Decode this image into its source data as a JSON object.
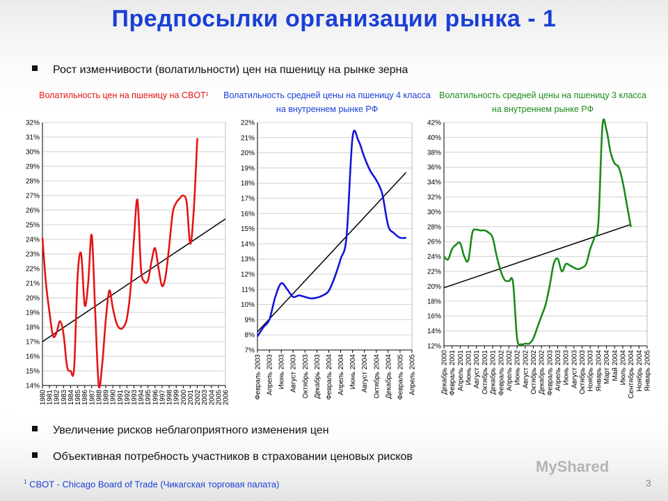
{
  "title": "Предпосылки организации рынка - 1",
  "bullets": {
    "b1": "Рост изменчивости (волатильности) цен на пшеницу на рынке зерна",
    "b2": "Увеличение рисков неблагоприятного изменения цен",
    "b3": "Объективная потребность участников в страховании ценовых рисков"
  },
  "footnote": {
    "sup": "1",
    "text": "CBOT - Chicago Board of Trade (Чикагская торговая палата)"
  },
  "page_number": "3",
  "watermark": "MyShared",
  "colors": {
    "title": "#1a3fd6",
    "red": "#e41414",
    "blue": "#1414d8",
    "green": "#1a8a1a",
    "trend": "#000000"
  },
  "chart_data": [
    {
      "type": "line",
      "title": "Волатильность цен на пшеницу на CBOT¹",
      "title_color": "#e41414",
      "color": "#e41414",
      "ylim": [
        14,
        32
      ],
      "y_ticks": [
        "14%",
        "15%",
        "16%",
        "17%",
        "18%",
        "19%",
        "20%",
        "21%",
        "22%",
        "23%",
        "24%",
        "25%",
        "26%",
        "27%",
        "28%",
        "29%",
        "30%",
        "31%",
        "32%"
      ],
      "x_labels": [
        "1980",
        "1981",
        "1982",
        "1983",
        "1984",
        "1985",
        "1986",
        "1987",
        "1988",
        "1989",
        "1990",
        "1991",
        "1992",
        "1993",
        "1994",
        "1995",
        "1996",
        "1997",
        "1998",
        "1999",
        "2000",
        "2001",
        "2002",
        "2003",
        "2004",
        "2005",
        "2006"
      ],
      "xlim": [
        0,
        26
      ],
      "x": [
        0,
        0.5,
        1,
        1.5,
        2,
        2.5,
        3,
        3.5,
        4,
        4.5,
        5,
        5.5,
        6,
        6.5,
        7,
        7.5,
        8,
        8.5,
        9,
        9.5,
        10,
        10.5,
        11,
        11.5,
        12,
        12.5,
        13,
        13.5,
        14,
        14.5,
        15,
        15.5,
        16,
        16.5,
        17,
        17.5,
        18,
        18.5,
        19,
        19.5,
        20,
        20.5,
        21,
        21.5,
        22,
        22.5,
        23,
        23.5,
        24,
        24.5,
        25,
        25.5,
        26
      ],
      "y": [
        24.1,
        21.0,
        19.0,
        17.4,
        17.6,
        18.4,
        17.5,
        15.3,
        15.0,
        15.2,
        21.5,
        23.0,
        19.5,
        21.0,
        24.3,
        19.0,
        14.0,
        15.5,
        18.5,
        20.5,
        19.3,
        18.3,
        17.9,
        18.0,
        18.6,
        20.5,
        24.0,
        26.7,
        22.0,
        21.1,
        21.2,
        22.5,
        23.4,
        22.0,
        20.8,
        21.5,
        23.5,
        25.8,
        26.5,
        26.8,
        27.0,
        26.5,
        23.7,
        26.0,
        30.9,
        null,
        null,
        null,
        null,
        null,
        null,
        null,
        null
      ],
      "trend": {
        "x": [
          0,
          26
        ],
        "y": [
          17.0,
          25.4
        ]
      }
    },
    {
      "type": "line",
      "title": "Волатильность средней цены на пшеницу 4 класса на внутреннем рынке РФ",
      "title_color": "#1a3fd6",
      "color": "#1414d8",
      "ylim": [
        7,
        22
      ],
      "y_ticks": [
        "7%",
        "8%",
        "9%",
        "10%",
        "11%",
        "12%",
        "13%",
        "14%",
        "15%",
        "16%",
        "17%",
        "18%",
        "19%",
        "20%",
        "21%",
        "22%"
      ],
      "x_labels": [
        "Февраль 2003",
        "Апрель 2003",
        "Июнь 2003",
        "Август 2003",
        "Октябрь 2003",
        "Декабрь 2003",
        "Февраль 2004",
        "Апрель 2004",
        "Июнь 2004",
        "Август 2004",
        "Октябрь 2004",
        "Декабрь 2004",
        "Февраль 2005",
        "Апрель 2005"
      ],
      "xlim": [
        0,
        26
      ],
      "x": [
        0,
        1,
        2,
        3,
        4,
        5,
        6,
        7,
        8,
        9,
        10,
        11,
        12,
        13,
        14,
        15,
        16,
        17,
        18,
        19,
        20,
        21,
        22,
        23,
        24,
        25,
        26
      ],
      "y": [
        7.9,
        8.5,
        9.0,
        10.5,
        11.4,
        11.0,
        10.5,
        10.6,
        10.5,
        10.4,
        10.45,
        10.6,
        10.9,
        11.8,
        13.0,
        14.5,
        21.0,
        20.8,
        19.7,
        18.8,
        18.2,
        17.3,
        15.2,
        14.7,
        14.4,
        14.4,
        null
      ],
      "trend": {
        "x": [
          0,
          25
        ],
        "y": [
          8.2,
          18.7
        ]
      }
    },
    {
      "type": "line",
      "title": "Волатильность средней цены на пшеницу 3 класса на внутреннем рынке РФ",
      "title_color": "#1a8a1a",
      "color": "#1a8a1a",
      "ylim": [
        12,
        42
      ],
      "y_ticks": [
        "12%",
        "14%",
        "16%",
        "18%",
        "20%",
        "22%",
        "24%",
        "26%",
        "28%",
        "30%",
        "32%",
        "34%",
        "36%",
        "38%",
        "40%",
        "42%"
      ],
      "x_labels": [
        "Декабрь 2000",
        "Февраль 2001",
        "Апрель 2001",
        "Июнь 2001",
        "Август 2001",
        "Октябрь 2001",
        "Декабрь 2001",
        "Февраль 2002",
        "Апрель 2002",
        "Июнь 2002",
        "Август 2002",
        "Октябрь 2002",
        "Декабрь 2002",
        "Февраль 2003",
        "Апрель 2003",
        "Июнь 2003",
        "Август 2003",
        "Октябрь 2003",
        "Ноябрь 2003",
        "Январь 2004",
        "Март 2004",
        "Май 2004",
        "Июль 2004",
        "Сентябрь 2004",
        "Ноябрь 2004",
        "Январь 2005"
      ],
      "xlim": [
        0,
        50
      ],
      "x": [
        0,
        1,
        2,
        3,
        4,
        5,
        6,
        7,
        8,
        9,
        10,
        11,
        12,
        13,
        14,
        15,
        16,
        17,
        18,
        19,
        20,
        21,
        22,
        23,
        24,
        25,
        26,
        27,
        28,
        29,
        30,
        31,
        32,
        33,
        34,
        35,
        36,
        37,
        38,
        39,
        40,
        41,
        42,
        43,
        44,
        45,
        46,
        47,
        48,
        49,
        50
      ],
      "y": [
        24.0,
        23.6,
        25.0,
        25.6,
        25.8,
        24.0,
        23.5,
        27.2,
        27.6,
        27.5,
        27.5,
        27.2,
        26.5,
        24.0,
        22.0,
        20.8,
        20.7,
        20.5,
        13.0,
        12.2,
        12.3,
        12.3,
        13.0,
        14.5,
        16.0,
        17.5,
        20.0,
        23.0,
        23.7,
        22.0,
        23.0,
        22.8,
        22.5,
        22.3,
        22.5,
        23.0,
        25.0,
        26.5,
        28.5,
        41.5,
        41.0,
        38.0,
        36.5,
        36.0,
        34.0,
        31.0,
        28.0,
        null,
        null,
        null,
        null
      ],
      "trend": {
        "x": [
          0,
          46
        ],
        "y": [
          19.8,
          28.3
        ]
      }
    }
  ]
}
